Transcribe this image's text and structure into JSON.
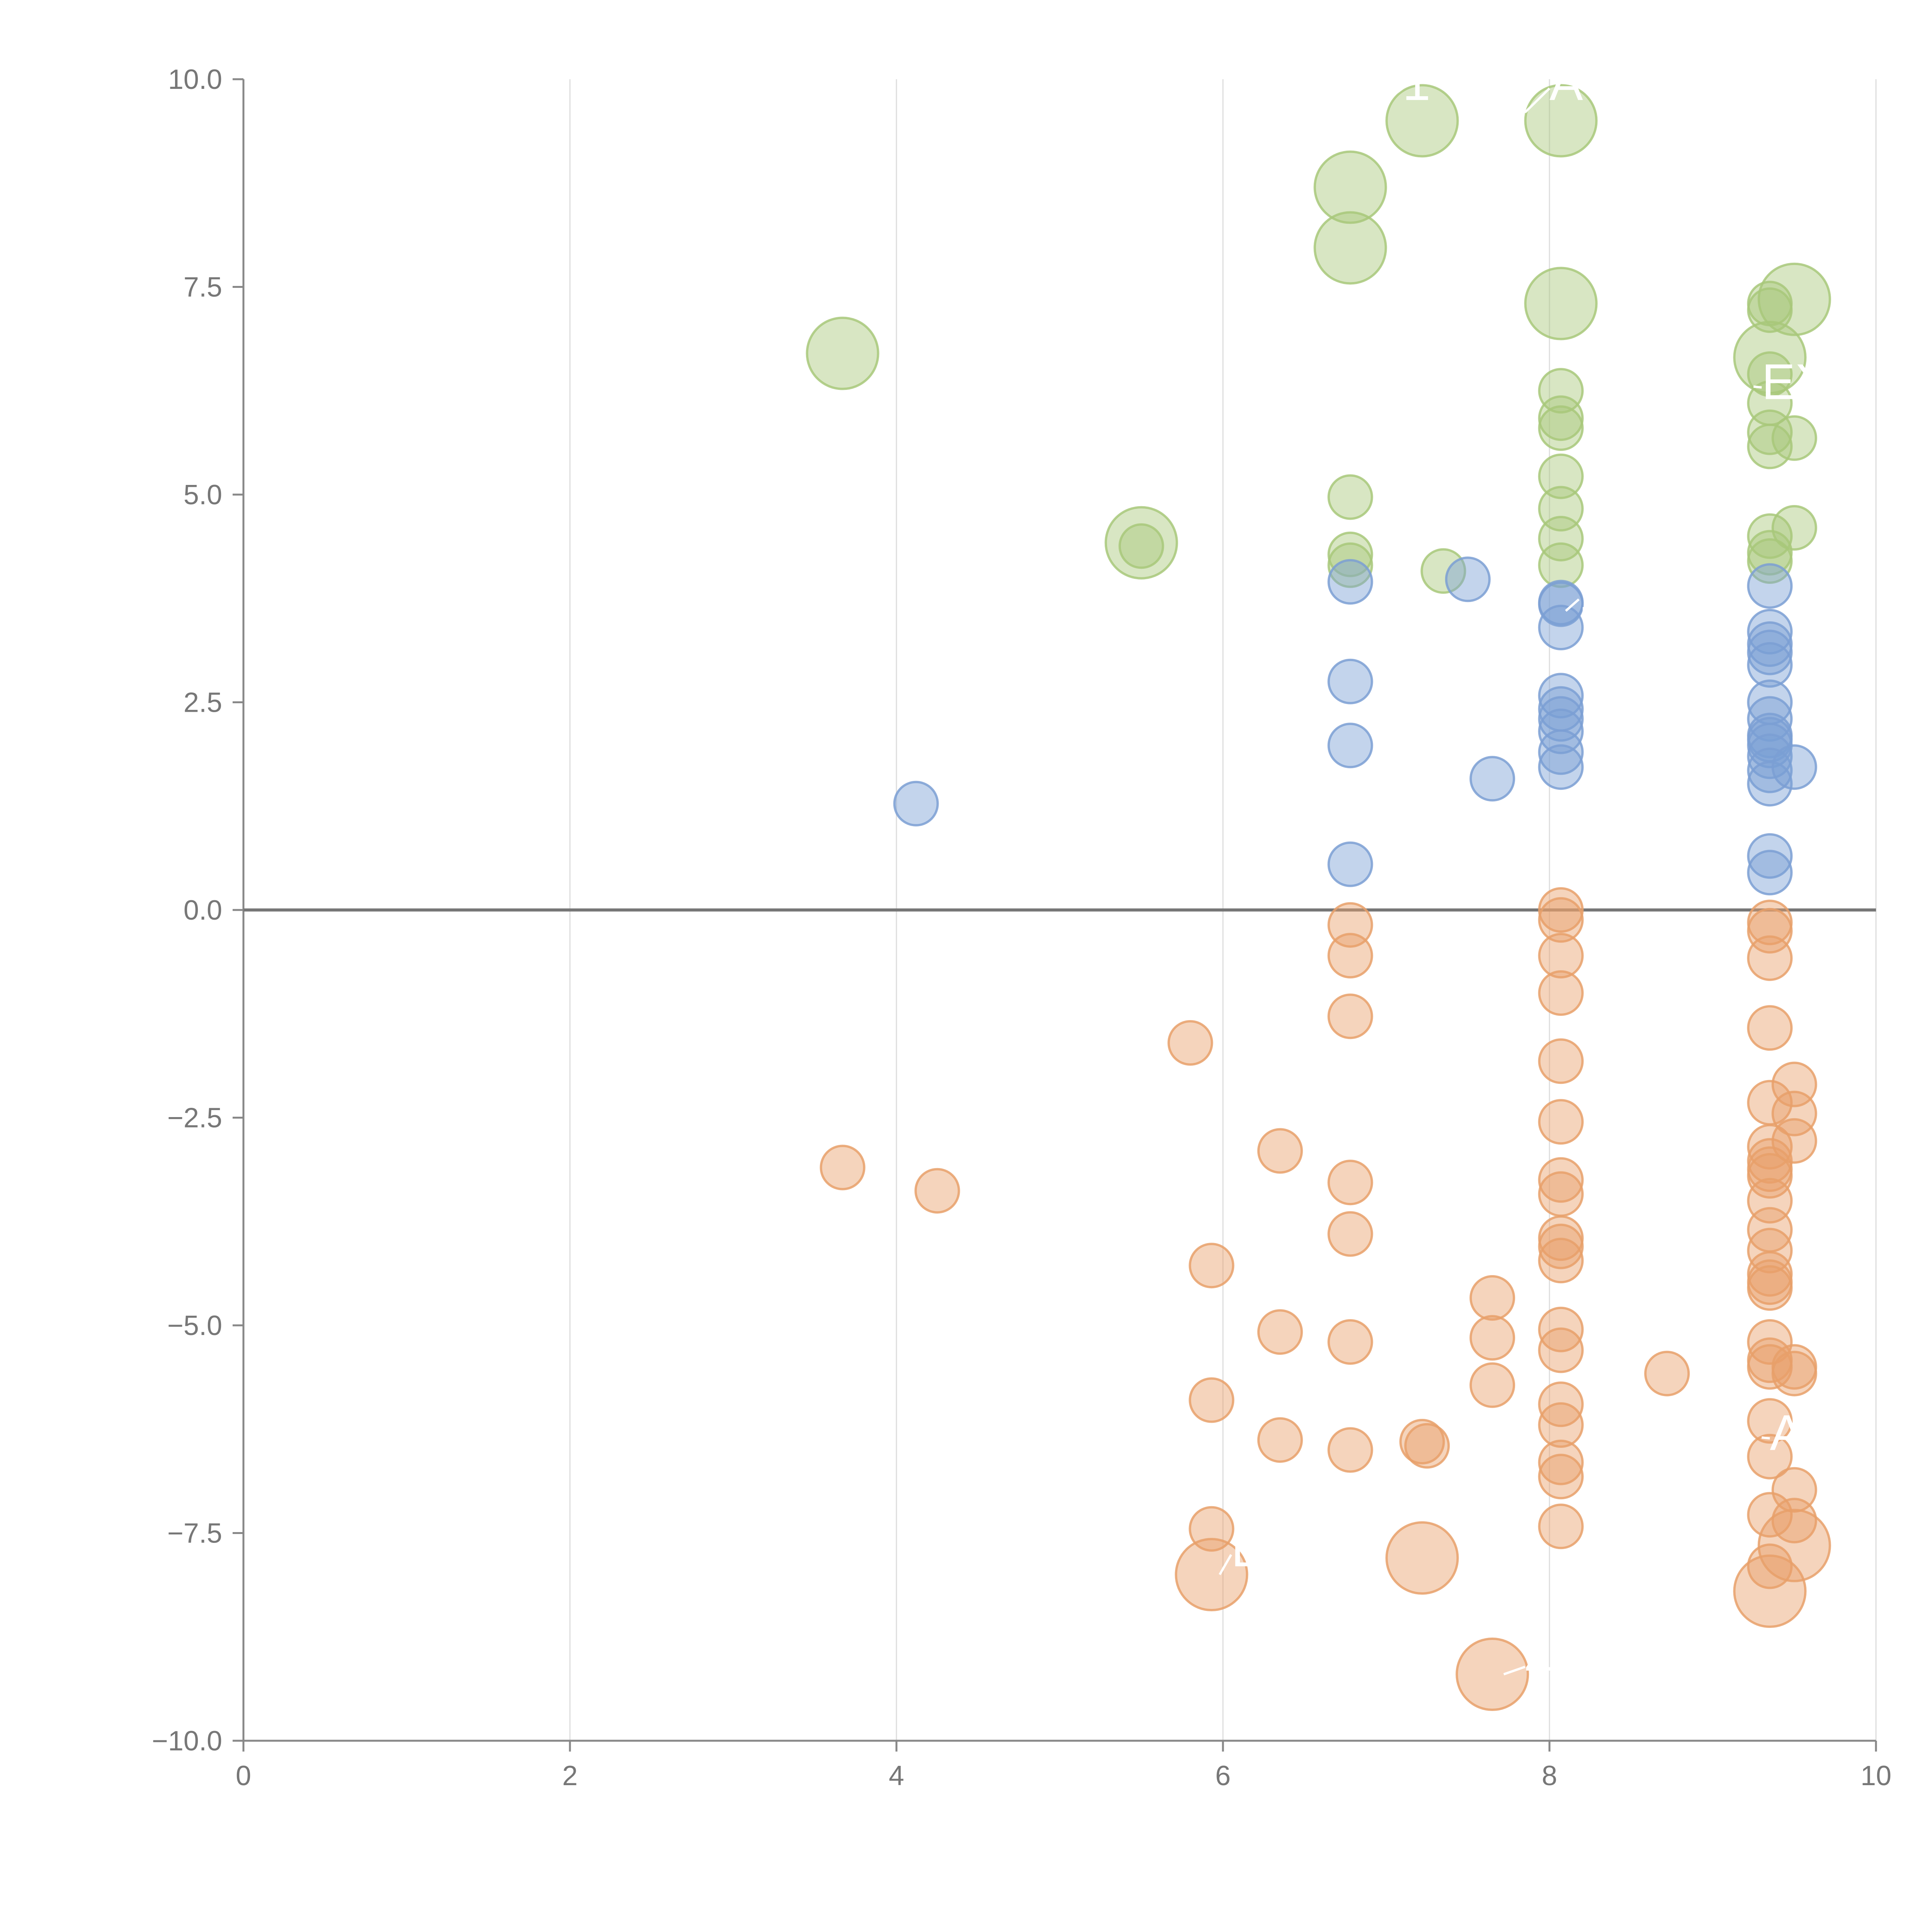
{
  "chart_data": {
    "type": "scatter",
    "title": "",
    "xlabel": "",
    "ylabel": "",
    "xlim": [
      0,
      10
    ],
    "ylim": [
      -10,
      10
    ],
    "grid": "vertical",
    "x_ticks": [
      "0",
      "2",
      "4",
      "6",
      "8",
      "10"
    ],
    "y_ticks": [
      "−10.0",
      "−7.5",
      "−5.0",
      "−2.5",
      "0.0",
      "2.5",
      "5.0",
      "7.5",
      "10.0"
    ],
    "series": [
      {
        "name": "green",
        "color": "#a8c87a",
        "points": [
          {
            "x": 3.67,
            "y": 6.7,
            "size": 3
          },
          {
            "x": 5.5,
            "y": 4.42,
            "size": 3
          },
          {
            "x": 5.5,
            "y": 4.38,
            "size": 1
          },
          {
            "x": 6.78,
            "y": 8.7,
            "size": 3
          },
          {
            "x": 6.78,
            "y": 7.97,
            "size": 3
          },
          {
            "x": 6.78,
            "y": 4.97,
            "size": 1
          },
          {
            "x": 6.78,
            "y": 4.28,
            "size": 1
          },
          {
            "x": 6.78,
            "y": 4.15,
            "size": 1
          },
          {
            "x": 7.22,
            "y": 9.5,
            "size": 3
          },
          {
            "x": 7.35,
            "y": 4.08,
            "size": 1
          },
          {
            "x": 8.07,
            "y": 9.5,
            "size": 3
          },
          {
            "x": 8.07,
            "y": 7.3,
            "size": 3
          },
          {
            "x": 8.07,
            "y": 6.25,
            "size": 1
          },
          {
            "x": 8.07,
            "y": 5.92,
            "size": 1
          },
          {
            "x": 8.07,
            "y": 5.8,
            "size": 1
          },
          {
            "x": 8.07,
            "y": 5.22,
            "size": 1
          },
          {
            "x": 8.07,
            "y": 4.83,
            "size": 1
          },
          {
            "x": 8.07,
            "y": 4.47,
            "size": 1
          },
          {
            "x": 8.07,
            "y": 4.15,
            "size": 1
          },
          {
            "x": 9.35,
            "y": 7.3,
            "size": 1
          },
          {
            "x": 9.35,
            "y": 7.22,
            "size": 1
          },
          {
            "x": 9.35,
            "y": 6.65,
            "size": 3
          },
          {
            "x": 9.35,
            "y": 6.45,
            "size": 1
          },
          {
            "x": 9.35,
            "y": 6.1,
            "size": 1
          },
          {
            "x": 9.35,
            "y": 5.75,
            "size": 1
          },
          {
            "x": 9.35,
            "y": 5.58,
            "size": 1
          },
          {
            "x": 9.35,
            "y": 4.5,
            "size": 1
          },
          {
            "x": 9.35,
            "y": 4.3,
            "size": 1
          },
          {
            "x": 9.35,
            "y": 4.2,
            "size": 1
          },
          {
            "x": 9.5,
            "y": 7.35,
            "size": 3
          },
          {
            "x": 9.5,
            "y": 5.68,
            "size": 1
          },
          {
            "x": 9.5,
            "y": 4.6,
            "size": 1
          }
        ]
      },
      {
        "name": "blue",
        "color": "#7b9fd4",
        "points": [
          {
            "x": 4.12,
            "y": 1.28,
            "size": 1
          },
          {
            "x": 6.78,
            "y": 3.95,
            "size": 1
          },
          {
            "x": 6.78,
            "y": 2.75,
            "size": 1
          },
          {
            "x": 6.78,
            "y": 1.98,
            "size": 1
          },
          {
            "x": 6.78,
            "y": 0.55,
            "size": 1
          },
          {
            "x": 7.5,
            "y": 3.98,
            "size": 1
          },
          {
            "x": 7.65,
            "y": 1.58,
            "size": 1
          },
          {
            "x": 8.07,
            "y": 3.7,
            "size": 1
          },
          {
            "x": 8.07,
            "y": 3.68,
            "size": 1
          },
          {
            "x": 8.07,
            "y": 3.4,
            "size": 1
          },
          {
            "x": 8.07,
            "y": 2.58,
            "size": 1
          },
          {
            "x": 8.07,
            "y": 2.42,
            "size": 1
          },
          {
            "x": 8.07,
            "y": 2.3,
            "size": 1
          },
          {
            "x": 8.07,
            "y": 2.15,
            "size": 1
          },
          {
            "x": 8.07,
            "y": 1.9,
            "size": 1
          },
          {
            "x": 8.07,
            "y": 1.72,
            "size": 1
          },
          {
            "x": 9.35,
            "y": 3.9,
            "size": 1
          },
          {
            "x": 9.35,
            "y": 3.35,
            "size": 1
          },
          {
            "x": 9.35,
            "y": 3.2,
            "size": 1
          },
          {
            "x": 9.35,
            "y": 3.1,
            "size": 1
          },
          {
            "x": 9.35,
            "y": 2.95,
            "size": 1
          },
          {
            "x": 9.35,
            "y": 2.5,
            "size": 1
          },
          {
            "x": 9.35,
            "y": 2.3,
            "size": 1
          },
          {
            "x": 9.35,
            "y": 2.1,
            "size": 1
          },
          {
            "x": 9.35,
            "y": 2.05,
            "size": 1
          },
          {
            "x": 9.35,
            "y": 1.98,
            "size": 1
          },
          {
            "x": 9.35,
            "y": 1.85,
            "size": 1
          },
          {
            "x": 9.35,
            "y": 1.68,
            "size": 1
          },
          {
            "x": 9.35,
            "y": 1.52,
            "size": 1
          },
          {
            "x": 9.35,
            "y": 0.65,
            "size": 1
          },
          {
            "x": 9.35,
            "y": 0.45,
            "size": 1
          },
          {
            "x": 9.5,
            "y": 1.72,
            "size": 1
          }
        ]
      },
      {
        "name": "orange",
        "color": "#e8a06a",
        "points": [
          {
            "x": 3.67,
            "y": -3.1,
            "size": 1
          },
          {
            "x": 4.25,
            "y": -3.38,
            "size": 1
          },
          {
            "x": 5.8,
            "y": -1.6,
            "size": 1
          },
          {
            "x": 5.93,
            "y": -4.28,
            "size": 1
          },
          {
            "x": 5.93,
            "y": -5.9,
            "size": 1
          },
          {
            "x": 5.93,
            "y": -7.45,
            "size": 1
          },
          {
            "x": 5.93,
            "y": -8.0,
            "size": 3
          },
          {
            "x": 6.35,
            "y": -2.9,
            "size": 1
          },
          {
            "x": 6.35,
            "y": -5.08,
            "size": 1
          },
          {
            "x": 6.35,
            "y": -6.38,
            "size": 1
          },
          {
            "x": 6.78,
            "y": -0.18,
            "size": 1
          },
          {
            "x": 6.78,
            "y": -0.55,
            "size": 1
          },
          {
            "x": 6.78,
            "y": -1.28,
            "size": 1
          },
          {
            "x": 6.78,
            "y": -3.28,
            "size": 1
          },
          {
            "x": 6.78,
            "y": -3.9,
            "size": 1
          },
          {
            "x": 6.78,
            "y": -5.2,
            "size": 1
          },
          {
            "x": 6.78,
            "y": -6.5,
            "size": 1
          },
          {
            "x": 7.22,
            "y": -6.4,
            "size": 1
          },
          {
            "x": 7.25,
            "y": -6.45,
            "size": 1
          },
          {
            "x": 7.22,
            "y": -7.8,
            "size": 3
          },
          {
            "x": 7.65,
            "y": -4.67,
            "size": 1
          },
          {
            "x": 7.65,
            "y": -5.15,
            "size": 1
          },
          {
            "x": 7.65,
            "y": -5.72,
            "size": 1
          },
          {
            "x": 7.65,
            "y": -9.2,
            "size": 3
          },
          {
            "x": 8.07,
            "y": 0.0,
            "size": 1
          },
          {
            "x": 8.07,
            "y": -0.12,
            "size": 1
          },
          {
            "x": 8.07,
            "y": -0.55,
            "size": 1
          },
          {
            "x": 8.07,
            "y": -1.0,
            "size": 1
          },
          {
            "x": 8.07,
            "y": -1.82,
            "size": 1
          },
          {
            "x": 8.07,
            "y": -2.55,
            "size": 1
          },
          {
            "x": 8.07,
            "y": -3.25,
            "size": 1
          },
          {
            "x": 8.07,
            "y": -3.42,
            "size": 1
          },
          {
            "x": 8.07,
            "y": -3.95,
            "size": 1
          },
          {
            "x": 8.07,
            "y": -4.05,
            "size": 1
          },
          {
            "x": 8.07,
            "y": -4.22,
            "size": 1
          },
          {
            "x": 8.07,
            "y": -5.05,
            "size": 1
          },
          {
            "x": 8.07,
            "y": -5.3,
            "size": 1
          },
          {
            "x": 8.07,
            "y": -5.95,
            "size": 1
          },
          {
            "x": 8.07,
            "y": -6.2,
            "size": 1
          },
          {
            "x": 8.07,
            "y": -6.65,
            "size": 1
          },
          {
            "x": 8.07,
            "y": -6.82,
            "size": 1
          },
          {
            "x": 8.07,
            "y": -7.42,
            "size": 1
          },
          {
            "x": 8.72,
            "y": -5.58,
            "size": 1
          },
          {
            "x": 9.35,
            "y": -0.15,
            "size": 1
          },
          {
            "x": 9.35,
            "y": -0.25,
            "size": 1
          },
          {
            "x": 9.35,
            "y": -0.58,
            "size": 1
          },
          {
            "x": 9.35,
            "y": -1.42,
            "size": 1
          },
          {
            "x": 9.35,
            "y": -2.32,
            "size": 1
          },
          {
            "x": 9.35,
            "y": -2.85,
            "size": 1
          },
          {
            "x": 9.35,
            "y": -3.02,
            "size": 1
          },
          {
            "x": 9.35,
            "y": -3.12,
            "size": 1
          },
          {
            "x": 9.35,
            "y": -3.2,
            "size": 1
          },
          {
            "x": 9.35,
            "y": -3.5,
            "size": 1
          },
          {
            "x": 9.35,
            "y": -3.85,
            "size": 1
          },
          {
            "x": 9.35,
            "y": -4.1,
            "size": 1
          },
          {
            "x": 9.35,
            "y": -4.38,
            "size": 1
          },
          {
            "x": 9.35,
            "y": -4.48,
            "size": 1
          },
          {
            "x": 9.35,
            "y": -4.55,
            "size": 1
          },
          {
            "x": 9.35,
            "y": -5.2,
            "size": 1
          },
          {
            "x": 9.35,
            "y": -5.42,
            "size": 1
          },
          {
            "x": 9.35,
            "y": -5.5,
            "size": 1
          },
          {
            "x": 9.35,
            "y": -6.15,
            "size": 1
          },
          {
            "x": 9.35,
            "y": -6.58,
            "size": 1
          },
          {
            "x": 9.35,
            "y": -7.28,
            "size": 1
          },
          {
            "x": 9.35,
            "y": -7.9,
            "size": 1
          },
          {
            "x": 9.35,
            "y": -8.2,
            "size": 3
          },
          {
            "x": 9.5,
            "y": -2.1,
            "size": 1
          },
          {
            "x": 9.5,
            "y": -2.45,
            "size": 1
          },
          {
            "x": 9.5,
            "y": -2.78,
            "size": 1
          },
          {
            "x": 9.5,
            "y": -5.5,
            "size": 1
          },
          {
            "x": 9.5,
            "y": -5.58,
            "size": 1
          },
          {
            "x": 9.5,
            "y": -6.98,
            "size": 1
          },
          {
            "x": 9.5,
            "y": -7.35,
            "size": 1
          },
          {
            "x": 9.5,
            "y": -7.65,
            "size": 3
          }
        ]
      }
    ],
    "annotations": [
      {
        "text": "1",
        "x": 7.1,
        "y": 9.75,
        "lead_x": 6.9,
        "lead_y": 9.6
      },
      {
        "text": "A",
        "x": 8.0,
        "y": 9.75,
        "lead_x": 7.85,
        "lead_y": 9.6
      },
      {
        "text": "EX",
        "x": 9.3,
        "y": 6.15,
        "lead_x": 9.25,
        "lead_y": 6.3
      },
      {
        "text": "1",
        "x": 8.18,
        "y": 3.6,
        "lead_x": 8.1,
        "lead_y": 3.6
      },
      {
        "text": "A",
        "x": 9.35,
        "y": -6.5,
        "lead_x": 9.3,
        "lead_y": -6.35
      },
      {
        "text": "E",
        "x": 6.05,
        "y": -7.9,
        "lead_x": 5.98,
        "lead_y": -8.0
      },
      {
        "text": "4",
        "x": 7.85,
        "y": -9.25,
        "lead_x": 7.72,
        "lead_y": -9.2
      }
    ]
  }
}
